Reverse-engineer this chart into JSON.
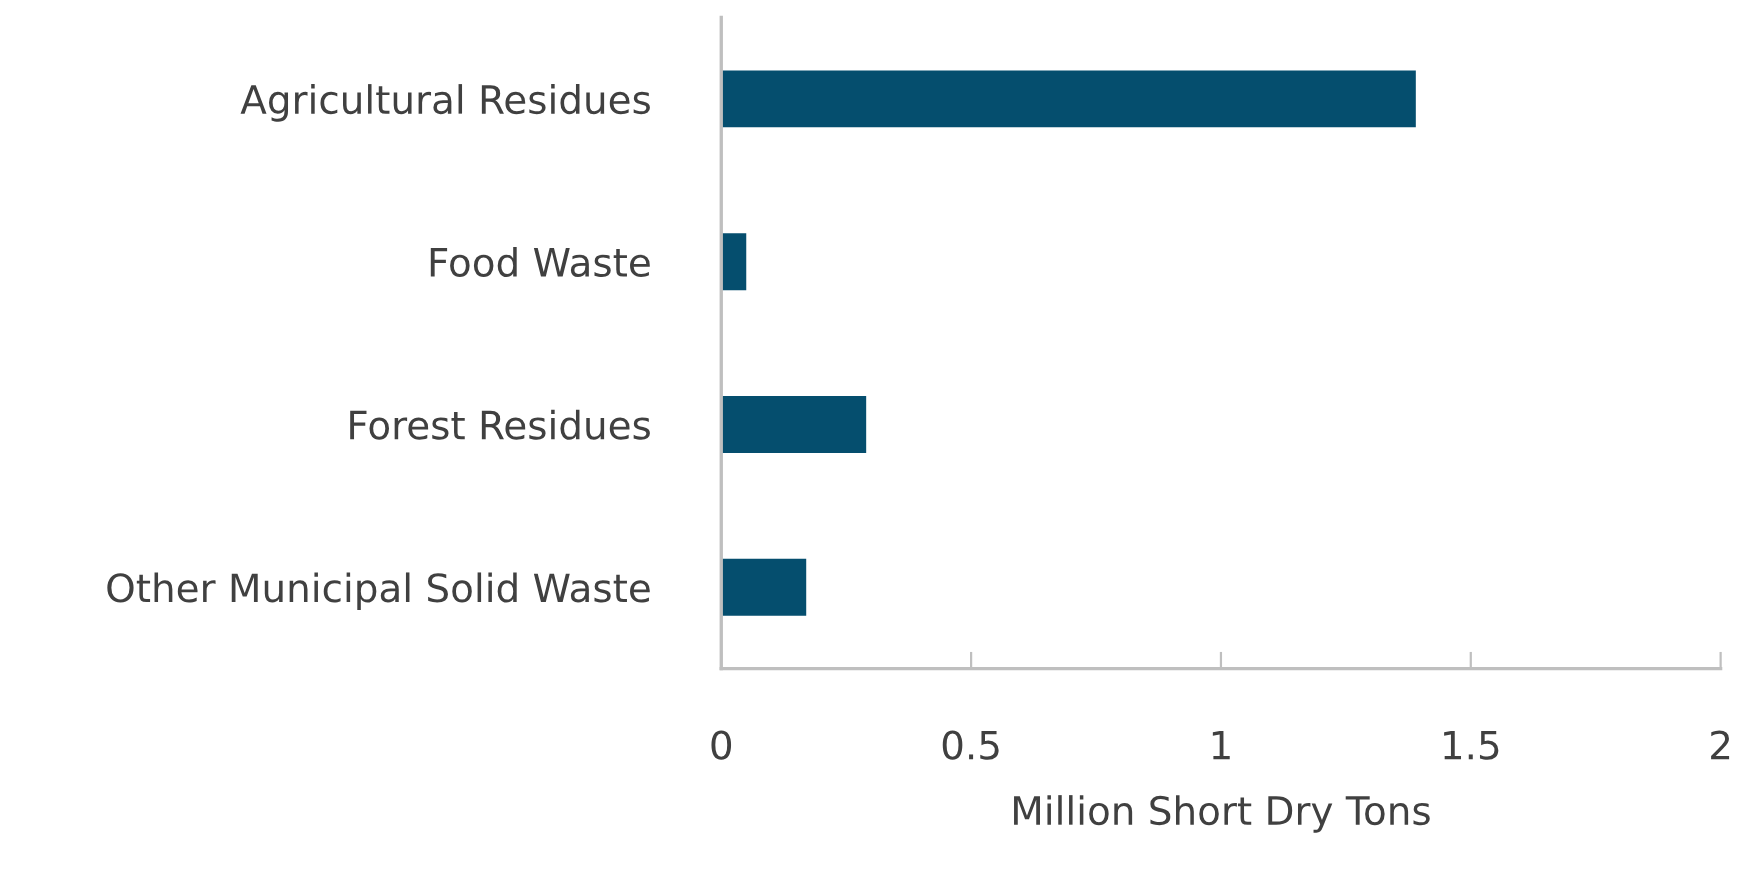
{
  "chart_data": {
    "type": "bar",
    "orientation": "horizontal",
    "xlabel": "Million Short Dry Tons",
    "categories": [
      "Agricultural Residues",
      "Food Waste",
      "Forest Residues",
      "Other Municipal Solid Waste"
    ],
    "values": [
      1.39,
      0.05,
      0.29,
      0.17
    ],
    "color": "#054e6e",
    "xlim": [
      0,
      2
    ],
    "xticks": [
      0,
      0.5,
      1,
      1.5,
      2
    ],
    "grid": false,
    "legend": false
  }
}
